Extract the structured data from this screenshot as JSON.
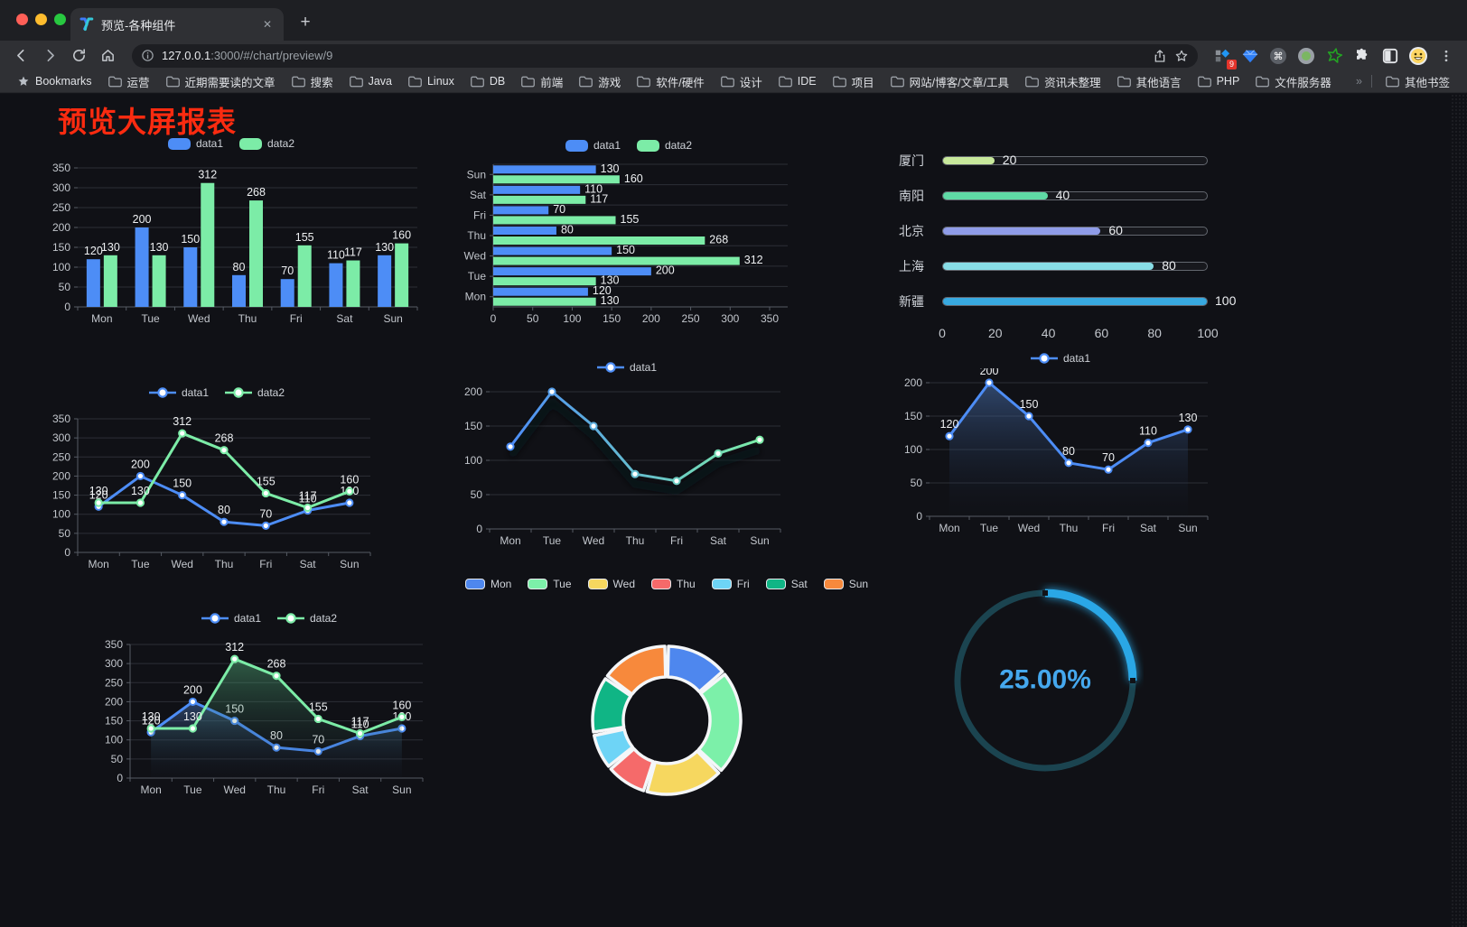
{
  "browser": {
    "traffic_lights": [
      "#ff5f57",
      "#febc2e",
      "#28c840"
    ],
    "tab": {
      "title": "预览-各种组件",
      "close": "✕",
      "new_tab": "+"
    },
    "address": {
      "host": "127.0.0.1",
      "path": ":3000/#/chart/preview/9"
    },
    "toolbar_icons": [
      "back-icon",
      "forward-icon",
      "reload-icon",
      "home-icon",
      "info-icon",
      "share-icon",
      "star-icon",
      "extension-grid-diamond-icon",
      "gem-icon",
      "command-circle-icon",
      "green-dot-icon",
      "green-star-icon",
      "puzzle-icon",
      "split-square-icon",
      "profile-avatar",
      "menu-dots-icon"
    ],
    "extension_badge": "9",
    "bookmarks_label": "Bookmarks",
    "bookmarks": [
      "运营",
      "近期需要读的文章",
      "搜索",
      "Java",
      "Linux",
      "DB",
      "前端",
      "游戏",
      "软件/硬件",
      "设计",
      "IDE",
      "项目",
      "网站/博客/文章/工具",
      "资讯未整理",
      "其他语言",
      "PHP",
      "文件服务器"
    ],
    "bookmarks_overflow": "»",
    "other_bookmarks": "其他书签"
  },
  "page": {
    "title": "预览大屏报表",
    "title_color": "#fb2b10"
  },
  "chart_data": [
    {
      "id": "bar-grouped",
      "type": "bar",
      "categories": [
        "Mon",
        "Tue",
        "Wed",
        "Thu",
        "Fri",
        "Sat",
        "Sun"
      ],
      "series": [
        {
          "name": "data1",
          "color": "#4d8df6",
          "values": [
            120,
            200,
            150,
            80,
            70,
            110,
            130
          ]
        },
        {
          "name": "data2",
          "color": "#7ceca7",
          "values": [
            130,
            130,
            312,
            268,
            155,
            117,
            160
          ]
        }
      ],
      "ylim": [
        0,
        350
      ],
      "yticks": [
        0,
        50,
        100,
        150,
        200,
        250,
        300,
        350
      ],
      "legend_position": "top",
      "grid": true,
      "value_labels": true
    },
    {
      "id": "bar-horizontal",
      "type": "bar-horizontal",
      "categories_bottom_to_top": [
        "Mon",
        "Tue",
        "Wed",
        "Thu",
        "Fri",
        "Sat",
        "Sun"
      ],
      "series": [
        {
          "name": "data1",
          "color": "#4d8df6",
          "values": [
            120,
            200,
            150,
            80,
            70,
            110,
            130
          ]
        },
        {
          "name": "data2",
          "color": "#7ceca7",
          "values": [
            130,
            130,
            312,
            268,
            155,
            117,
            160
          ]
        }
      ],
      "xlim": [
        0,
        350
      ],
      "xticks": [
        0,
        50,
        100,
        150,
        200,
        250,
        300,
        350
      ],
      "legend_position": "top",
      "value_labels": true
    },
    {
      "id": "progress-list",
      "type": "progress-bars",
      "items": [
        {
          "label": "厦门",
          "value": 20,
          "color": "#c8e99c"
        },
        {
          "label": "南阳",
          "value": 40,
          "color": "#5fd9a5"
        },
        {
          "label": "北京",
          "value": 60,
          "color": "#8f9ce8"
        },
        {
          "label": "上海",
          "value": 80,
          "color": "#88dde6"
        },
        {
          "label": "新疆",
          "value": 100,
          "color": "#38a9e0"
        }
      ],
      "xlim": [
        0,
        100
      ],
      "xticks": [
        0,
        20,
        40,
        60,
        80,
        100
      ]
    },
    {
      "id": "line-two",
      "type": "line",
      "categories": [
        "Mon",
        "Tue",
        "Wed",
        "Thu",
        "Fri",
        "Sat",
        "Sun"
      ],
      "series": [
        {
          "name": "data1",
          "color": "#4d8df6",
          "values": [
            120,
            200,
            150,
            80,
            70,
            110,
            130
          ]
        },
        {
          "name": "data2",
          "color": "#7ceca7",
          "values": [
            130,
            130,
            312,
            268,
            155,
            117,
            160
          ]
        }
      ],
      "ylim": [
        0,
        350
      ],
      "yticks": [
        0,
        50,
        100,
        150,
        200,
        250,
        300,
        350
      ],
      "legend_position": "top",
      "value_labels": true,
      "markers": "white-dot"
    },
    {
      "id": "line-gradient",
      "type": "line",
      "categories": [
        "Mon",
        "Tue",
        "Wed",
        "Thu",
        "Fri",
        "Sat",
        "Sun"
      ],
      "series": [
        {
          "name": "data1",
          "gradient": [
            "#4d8df6",
            "#7ceca7"
          ],
          "color": "#4d8df6",
          "values": [
            120,
            200,
            150,
            80,
            70,
            110,
            130
          ]
        }
      ],
      "ylim": [
        0,
        200
      ],
      "yticks": [
        0,
        50,
        100,
        150,
        200
      ],
      "legend_position": "top",
      "value_labels": false,
      "markers": "white-dot",
      "shadow": true
    },
    {
      "id": "area-one",
      "type": "area",
      "categories": [
        "Mon",
        "Tue",
        "Wed",
        "Thu",
        "Fri",
        "Sat",
        "Sun"
      ],
      "series": [
        {
          "name": "data1",
          "color": "#4d8df6",
          "area": "rgba(80,125,195,0.5)",
          "values": [
            120,
            200,
            150,
            80,
            70,
            110,
            130
          ]
        }
      ],
      "ylim": [
        0,
        200
      ],
      "yticks": [
        0,
        50,
        100,
        150,
        200
      ],
      "legend_position": "top",
      "value_labels": true,
      "markers": "white-dot"
    },
    {
      "id": "area-two",
      "type": "area",
      "categories": [
        "Mon",
        "Tue",
        "Wed",
        "Thu",
        "Fri",
        "Sat",
        "Sun"
      ],
      "series": [
        {
          "name": "data1",
          "color": "#4d8df6",
          "area": "rgba(80,125,195,0.45)",
          "values": [
            120,
            200,
            150,
            80,
            70,
            110,
            130
          ]
        },
        {
          "name": "data2",
          "color": "#7ceca7",
          "area": "rgba(95,205,140,0.4)",
          "values": [
            130,
            130,
            312,
            268,
            155,
            117,
            160
          ]
        }
      ],
      "ylim": [
        0,
        350
      ],
      "yticks": [
        0,
        50,
        100,
        150,
        200,
        250,
        300,
        350
      ],
      "legend_position": "top",
      "value_labels": true,
      "markers": "white-dot"
    },
    {
      "id": "pie-days",
      "type": "pie",
      "donut": true,
      "items": [
        {
          "label": "Mon",
          "value": 120,
          "color": "#4e87ee"
        },
        {
          "label": "Tue",
          "value": 200,
          "color": "#7cf0a9"
        },
        {
          "label": "Wed",
          "value": 150,
          "color": "#f6d75f"
        },
        {
          "label": "Thu",
          "value": 80,
          "color": "#f56a6a"
        },
        {
          "label": "Fri",
          "value": 70,
          "color": "#6ed4f6"
        },
        {
          "label": "Sat",
          "value": 110,
          "color": "#10b585"
        },
        {
          "label": "Sun",
          "value": 130,
          "color": "#f7893c"
        }
      ],
      "legend_position": "top",
      "border_color": "#f4f6f8"
    },
    {
      "id": "gauge-percent",
      "type": "gauge",
      "value": 25,
      "display": "25.00%",
      "arc_color": "#2ba7e6",
      "track_color": "#1b4450",
      "text_color": "#45a8ee"
    }
  ]
}
